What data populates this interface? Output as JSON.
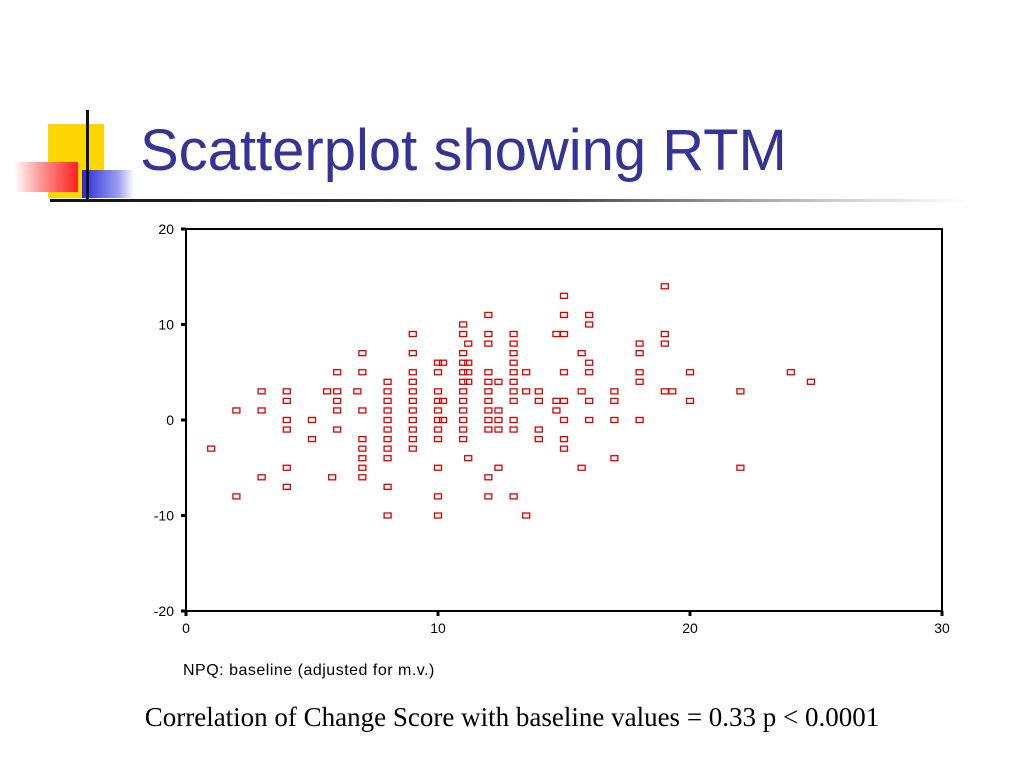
{
  "slide": {
    "title": "Scatterplot showing RTM",
    "caption": "Correlation of Change Score with baseline values = 0.33 p < 0.0001"
  },
  "colors": {
    "title": "#333399",
    "marker": "#e00000"
  },
  "chart_data": {
    "type": "scatter",
    "title": "",
    "xlabel": "NPQ: baseline (adjusted for m.v.)",
    "ylabel": "",
    "xlim": [
      0,
      30
    ],
    "ylim": [
      -20,
      20
    ],
    "xticks": [
      0,
      10,
      20,
      30
    ],
    "yticks": [
      20,
      10,
      0,
      -10,
      -20
    ],
    "grid": false,
    "legend": "none",
    "points": [
      [
        1,
        -3
      ],
      [
        2,
        1
      ],
      [
        2,
        -8
      ],
      [
        3,
        3
      ],
      [
        3,
        1
      ],
      [
        3,
        -6
      ],
      [
        4,
        3
      ],
      [
        4,
        2
      ],
      [
        4,
        0
      ],
      [
        4,
        -1
      ],
      [
        4,
        -5
      ],
      [
        4,
        -7
      ],
      [
        5,
        0
      ],
      [
        5,
        -2
      ],
      [
        5.6,
        3
      ],
      [
        5.8,
        -6
      ],
      [
        6,
        5
      ],
      [
        6,
        3
      ],
      [
        6,
        2
      ],
      [
        6,
        1
      ],
      [
        6,
        -1
      ],
      [
        6.8,
        3
      ],
      [
        7,
        7
      ],
      [
        7,
        5
      ],
      [
        7,
        1
      ],
      [
        7,
        -2
      ],
      [
        7,
        -3
      ],
      [
        7,
        -4
      ],
      [
        7,
        -5
      ],
      [
        7,
        -6
      ],
      [
        8,
        4
      ],
      [
        8,
        3
      ],
      [
        8,
        2
      ],
      [
        8,
        1
      ],
      [
        8,
        0
      ],
      [
        8,
        -1
      ],
      [
        8,
        -2
      ],
      [
        8,
        -3
      ],
      [
        8,
        -4
      ],
      [
        8,
        -7
      ],
      [
        8,
        -10
      ],
      [
        9,
        9
      ],
      [
        9,
        7
      ],
      [
        9,
        5
      ],
      [
        9,
        4
      ],
      [
        9,
        3
      ],
      [
        9,
        2
      ],
      [
        9,
        1
      ],
      [
        9,
        0
      ],
      [
        9,
        -1
      ],
      [
        9,
        -2
      ],
      [
        9,
        -3
      ],
      [
        10,
        6
      ],
      [
        10,
        5
      ],
      [
        10,
        3
      ],
      [
        10,
        2
      ],
      [
        10,
        1
      ],
      [
        10,
        0
      ],
      [
        10,
        -1
      ],
      [
        10,
        -2
      ],
      [
        10,
        -5
      ],
      [
        10,
        -8
      ],
      [
        10,
        -10
      ],
      [
        10.2,
        6
      ],
      [
        10.2,
        2
      ],
      [
        10.2,
        0
      ],
      [
        11,
        10
      ],
      [
        11,
        9
      ],
      [
        11,
        7
      ],
      [
        11,
        6
      ],
      [
        11,
        5
      ],
      [
        11,
        4
      ],
      [
        11,
        3
      ],
      [
        11,
        2
      ],
      [
        11,
        1
      ],
      [
        11,
        0
      ],
      [
        11,
        -1
      ],
      [
        11,
        -2
      ],
      [
        11.2,
        8
      ],
      [
        11.2,
        6
      ],
      [
        11.2,
        5
      ],
      [
        11.2,
        4
      ],
      [
        11.2,
        -4
      ],
      [
        12,
        11
      ],
      [
        12,
        9
      ],
      [
        12,
        8
      ],
      [
        12,
        5
      ],
      [
        12,
        4
      ],
      [
        12,
        3
      ],
      [
        12,
        2
      ],
      [
        12,
        1
      ],
      [
        12,
        0
      ],
      [
        12,
        -1
      ],
      [
        12,
        -6
      ],
      [
        12,
        -8
      ],
      [
        12.4,
        4
      ],
      [
        12.4,
        1
      ],
      [
        12.4,
        0
      ],
      [
        12.4,
        -1
      ],
      [
        12.4,
        -5
      ],
      [
        13,
        9
      ],
      [
        13,
        8
      ],
      [
        13,
        7
      ],
      [
        13,
        6
      ],
      [
        13,
        5
      ],
      [
        13,
        4
      ],
      [
        13,
        3
      ],
      [
        13,
        2
      ],
      [
        13,
        0
      ],
      [
        13,
        -1
      ],
      [
        13,
        -8
      ],
      [
        13.5,
        5
      ],
      [
        13.5,
        3
      ],
      [
        13.5,
        -10
      ],
      [
        14,
        3
      ],
      [
        14,
        2
      ],
      [
        14,
        -1
      ],
      [
        14,
        -2
      ],
      [
        14.7,
        9
      ],
      [
        14.7,
        2
      ],
      [
        14.7,
        1
      ],
      [
        15,
        13
      ],
      [
        15,
        11
      ],
      [
        15,
        9
      ],
      [
        15,
        5
      ],
      [
        15,
        2
      ],
      [
        15,
        0
      ],
      [
        15,
        -2
      ],
      [
        15,
        -3
      ],
      [
        15.7,
        7
      ],
      [
        15.7,
        3
      ],
      [
        15.7,
        -5
      ],
      [
        16,
        11
      ],
      [
        16,
        10
      ],
      [
        16,
        6
      ],
      [
        16,
        5
      ],
      [
        16,
        2
      ],
      [
        16,
        0
      ],
      [
        17,
        3
      ],
      [
        17,
        2
      ],
      [
        17,
        0
      ],
      [
        17,
        -4
      ],
      [
        18,
        8
      ],
      [
        18,
        7
      ],
      [
        18,
        5
      ],
      [
        18,
        4
      ],
      [
        18,
        0
      ],
      [
        19,
        14
      ],
      [
        19,
        9
      ],
      [
        19,
        8
      ],
      [
        19,
        3
      ],
      [
        19.3,
        3
      ],
      [
        20,
        5
      ],
      [
        20,
        2
      ],
      [
        22,
        3
      ],
      [
        22,
        -5
      ],
      [
        24,
        5
      ],
      [
        24.8,
        4
      ]
    ]
  }
}
